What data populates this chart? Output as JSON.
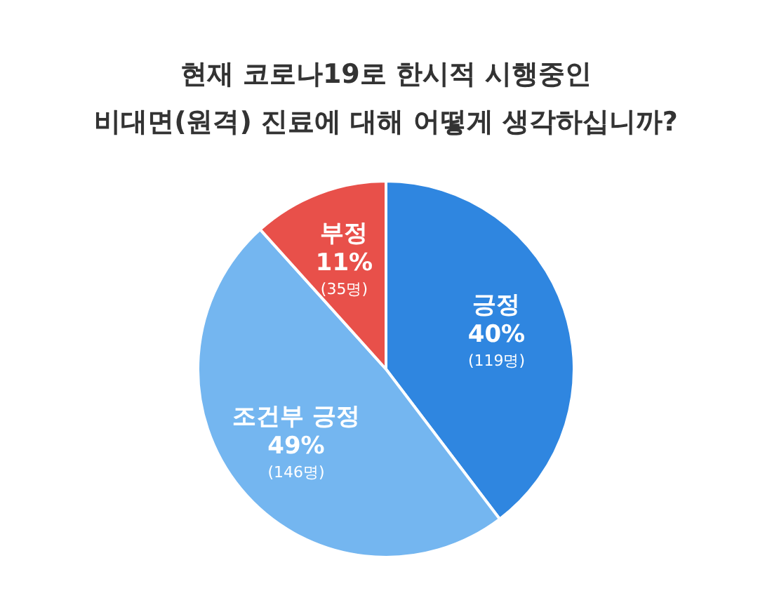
{
  "chart_data": {
    "type": "pie",
    "title": "현재 코로나19로 한시적 시행중인\n비대면(원격) 진료에 대해 어떻게 생각하십니까?",
    "categories": [
      "긍정",
      "조건부 긍정",
      "부정"
    ],
    "values": [
      119,
      146,
      35
    ],
    "colors": [
      "#2f86e0",
      "#74b6f0",
      "#e8504a"
    ],
    "value_labels": [
      "40%\n(119명)",
      "49%\n(146명)",
      "11%\n(35명)"
    ],
    "legend": false
  }
}
